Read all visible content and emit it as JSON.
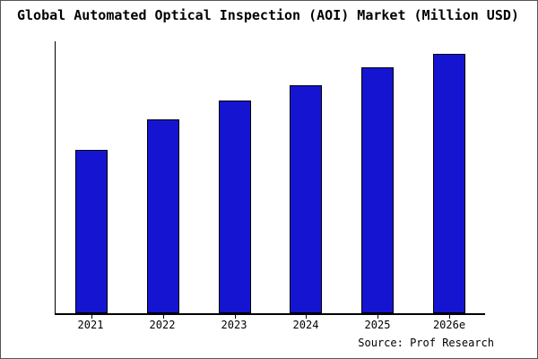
{
  "title": "Global Automated Optical Inspection (AOI) Market (Million USD)",
  "source": "Source: Prof Research",
  "colors": {
    "bar_fill": "#1515d1",
    "bar_border": "#000000",
    "axis": "#000000",
    "frame": "#555555",
    "background": "#ffffff"
  },
  "chart_data": {
    "type": "bar",
    "categories": [
      "2021",
      "2022",
      "2023",
      "2024",
      "2025",
      "2026e"
    ],
    "values": [
      63,
      75,
      82,
      88,
      95,
      100
    ],
    "title": "Global Automated Optical Inspection (AOI) Market (Million USD)",
    "xlabel": "",
    "ylabel": "",
    "ylim": [
      0,
      105
    ],
    "grid": false,
    "legend": false,
    "note": "No y-axis tick labels shown; values are estimated relative units read from bar heights"
  }
}
